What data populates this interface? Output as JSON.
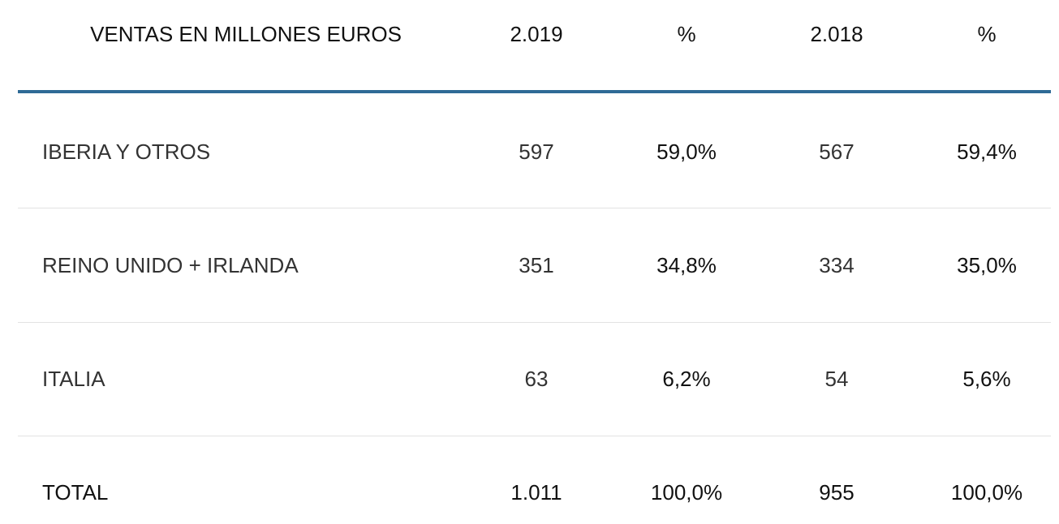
{
  "table": {
    "header": [
      "VENTAS EN MILLONES EUROS",
      "2.019",
      "%",
      "2.018",
      "%"
    ],
    "rows": [
      [
        "IBERIA Y OTROS",
        "597",
        "59,0%",
        "567",
        "59,4%"
      ],
      [
        "REINO UNIDO + IRLANDA",
        "351",
        "34,8%",
        "334",
        "35,0%"
      ],
      [
        "ITALIA",
        "63",
        "6,2%",
        "54",
        "5,6%"
      ],
      [
        "TOTAL",
        "1.011",
        "100,0%",
        "955",
        "100,0%"
      ]
    ]
  }
}
